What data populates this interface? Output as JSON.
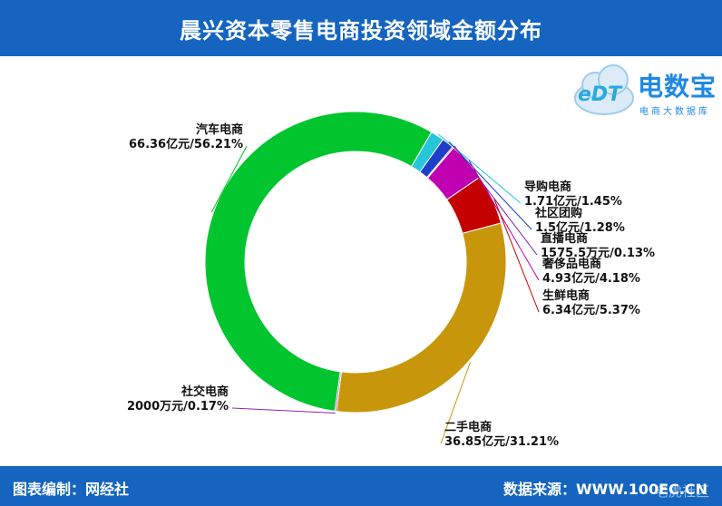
{
  "header": {
    "title": "晨兴资本零售电商投资领域金额分布"
  },
  "logo": {
    "mark": "eDT",
    "name": "电数宝",
    "subtitle": "电商大数据库"
  },
  "footer": {
    "left": "图表编制：网经社",
    "right": "数据来源：WWW.100EC.CN",
    "watermark": "老虎社区"
  },
  "chart_data": {
    "type": "pie",
    "donut": true,
    "start_angle_deg": 59.7,
    "slices": [
      {
        "name": "导购电商",
        "value_text": "1.71亿元/1.45%",
        "percent": 1.45,
        "color": "#26c6da"
      },
      {
        "name": "社区团购",
        "value_text": "1.5亿元/1.28%",
        "percent": 1.28,
        "color": "#1e3fc8"
      },
      {
        "name": "直播电商",
        "value_text": "1575.5万元/0.13%",
        "percent": 0.13,
        "color": "#7b1fa2"
      },
      {
        "name": "奢侈品电商",
        "value_text": "4.93亿元/4.18%",
        "percent": 4.18,
        "color": "#c000b0"
      },
      {
        "name": "生鲜电商",
        "value_text": "6.34亿元/5.37%",
        "percent": 5.37,
        "color": "#c40000"
      },
      {
        "name": "二手电商",
        "value_text": "36.85亿元/31.21%",
        "percent": 31.21,
        "color": "#c8960a"
      },
      {
        "name": "社交电商",
        "value_text": "2000万元/0.17%",
        "percent": 0.17,
        "color": "#8e24aa"
      },
      {
        "name": "汽车电商",
        "value_text": "66.36亿元/56.21%",
        "percent": 56.21,
        "color": "#00c52e"
      }
    ]
  }
}
